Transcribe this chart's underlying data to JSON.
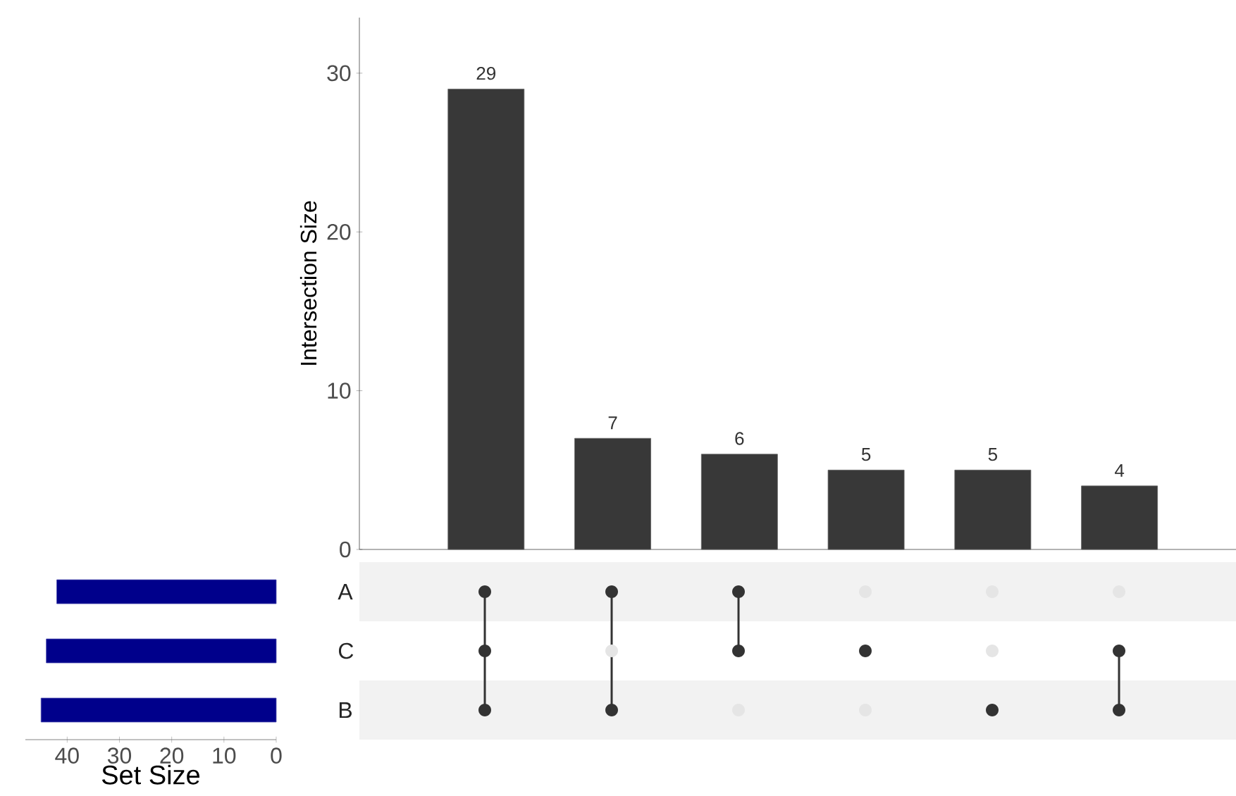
{
  "chart_data": [
    {
      "type": "bar",
      "categories": [
        null,
        null,
        null,
        null,
        null,
        null
      ],
      "values": [
        29,
        7,
        6,
        5,
        5,
        4
      ],
      "color": "#383838",
      "ylabel": "Intersection Size",
      "ylim": [
        0,
        33.5
      ],
      "yticks": [
        0,
        10,
        20,
        30
      ],
      "data_labels": true
    },
    {
      "type": "bar",
      "orientation": "horizontal",
      "categories": [
        "A",
        "C",
        "B"
      ],
      "values": [
        42,
        44,
        45
      ],
      "color": "#00008b",
      "xlabel": "Set Size",
      "xlim": [
        48,
        0
      ],
      "xticks": [
        40,
        30,
        20,
        10,
        0
      ]
    }
  ]
}
